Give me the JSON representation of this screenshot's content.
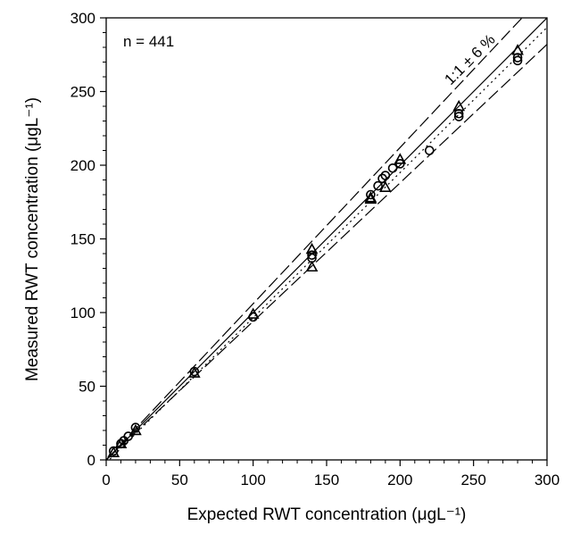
{
  "chart_data": {
    "type": "scatter",
    "title": "",
    "xlabel": "Expected RWT concentration (μgL⁻¹)",
    "ylabel": "Measured RWT concentration (μgL⁻¹)",
    "xlim": [
      0,
      300
    ],
    "ylim": [
      0,
      300
    ],
    "xticks": [
      0,
      50,
      100,
      150,
      200,
      250,
      300
    ],
    "yticks": [
      0,
      50,
      100,
      150,
      200,
      250,
      300
    ],
    "grid": false,
    "legend": "none",
    "annotations": {
      "n_label": "n = 441",
      "line_label": "1:1 ± 6 %"
    },
    "reference_lines": [
      {
        "kind": "solid",
        "slope": 1.0
      },
      {
        "kind": "dash",
        "slope": 1.06
      },
      {
        "kind": "dash",
        "slope": 0.94
      },
      {
        "kind": "dot",
        "slope": 0.985,
        "intercept": -2
      }
    ],
    "series": [
      {
        "marker": "circle",
        "points": [
          [
            5,
            6
          ],
          [
            10,
            11
          ],
          [
            12,
            13
          ],
          [
            15,
            16
          ],
          [
            20,
            22
          ],
          [
            60,
            60
          ],
          [
            100,
            97
          ],
          [
            140,
            137
          ],
          [
            140,
            139
          ],
          [
            180,
            180
          ],
          [
            185,
            186
          ],
          [
            188,
            191
          ],
          [
            190,
            193
          ],
          [
            195,
            198
          ],
          [
            200,
            201
          ],
          [
            220,
            210
          ],
          [
            240,
            233
          ],
          [
            240,
            235
          ],
          [
            280,
            271
          ],
          [
            280,
            273
          ]
        ]
      },
      {
        "marker": "triangle",
        "points": [
          [
            5,
            5
          ],
          [
            10,
            11
          ],
          [
            20,
            20
          ],
          [
            60,
            59
          ],
          [
            100,
            99
          ],
          [
            140,
            143
          ],
          [
            140,
            131
          ],
          [
            180,
            177
          ],
          [
            180,
            178
          ],
          [
            190,
            185
          ],
          [
            200,
            204
          ],
          [
            240,
            240
          ],
          [
            280,
            278
          ]
        ]
      }
    ]
  }
}
